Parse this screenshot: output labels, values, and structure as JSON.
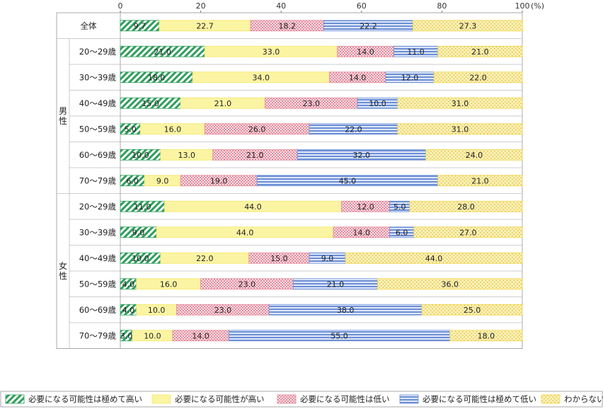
{
  "chart_data": {
    "type": "bar",
    "orientation": "horizontal",
    "stacked": true,
    "xlim": [
      0,
      100
    ],
    "x_ticks": [
      "0",
      "20",
      "40",
      "60",
      "80",
      "100"
    ],
    "unit": "(%)",
    "groups": [
      {
        "label": "",
        "rows": [
          0
        ]
      },
      {
        "label": "男性",
        "rows": [
          1,
          2,
          3,
          4,
          5,
          6
        ]
      },
      {
        "label": "女性",
        "rows": [
          7,
          8,
          9,
          10,
          11,
          12
        ]
      }
    ],
    "categories": [
      "全体",
      "20～29歳",
      "30～39歳",
      "40～49歳",
      "50～59歳",
      "60～69歳",
      "70～79歳",
      "20～29歳",
      "30～39歳",
      "40～49歳",
      "50～59歳",
      "60～69歳",
      "70～79歳"
    ],
    "series": [
      {
        "name": "必要になる可能性は極めて高い",
        "color": "#2e9e5b",
        "values": [
          9.7,
          21.0,
          18.0,
          15.0,
          5.0,
          10.0,
          6.0,
          11.0,
          9.0,
          10.0,
          4.0,
          4.0,
          3.0
        ]
      },
      {
        "name": "必要になる可能性が高い",
        "color": "#f5e86a",
        "values": [
          22.7,
          33.0,
          34.0,
          21.0,
          16.0,
          13.0,
          9.0,
          44.0,
          44.0,
          22.0,
          16.0,
          10.0,
          10.0
        ]
      },
      {
        "name": "必要になる可能性は低い",
        "color": "#e58a9c",
        "values": [
          18.2,
          14.0,
          14.0,
          23.0,
          26.0,
          21.0,
          19.0,
          12.0,
          14.0,
          15.0,
          23.0,
          23.0,
          14.0
        ]
      },
      {
        "name": "必要になる可能性は極めて低い",
        "color": "#6c8fd6",
        "values": [
          22.2,
          11.0,
          12.0,
          10.0,
          22.0,
          32.0,
          45.0,
          5.0,
          6.0,
          9.0,
          21.0,
          38.0,
          55.0
        ]
      },
      {
        "name": "わからない",
        "color": "#f2d64b",
        "values": [
          27.3,
          21.0,
          22.0,
          31.0,
          31.0,
          24.0,
          21.0,
          28.0,
          27.0,
          44.0,
          36.0,
          25.0,
          18.0
        ]
      }
    ]
  }
}
